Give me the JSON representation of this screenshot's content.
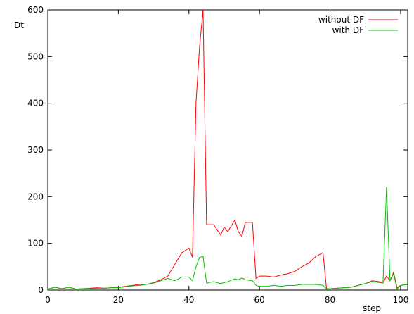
{
  "chart_data": {
    "type": "line",
    "y_label": "Dt",
    "x_label": "step",
    "x": [
      0,
      2,
      4,
      6,
      8,
      10,
      12,
      14,
      16,
      18,
      20,
      22,
      24,
      26,
      28,
      30,
      32,
      34,
      36,
      38,
      40,
      41,
      42,
      43,
      44,
      45,
      47,
      49,
      50,
      51,
      53,
      54,
      55,
      56,
      58,
      59,
      60,
      62,
      64,
      66,
      68,
      70,
      72,
      74,
      76,
      78,
      79,
      80,
      82,
      84,
      86,
      88,
      90,
      92,
      94,
      95,
      96,
      97,
      98,
      99,
      100,
      102
    ],
    "series": [
      {
        "name": "without DF",
        "color": "#ff0000",
        "values": [
          2,
          6,
          3,
          6,
          2,
          3,
          4,
          5,
          4,
          5,
          6,
          8,
          10,
          12,
          12,
          16,
          22,
          30,
          55,
          80,
          90,
          70,
          400,
          520,
          600,
          140,
          140,
          118,
          135,
          125,
          150,
          125,
          115,
          145,
          145,
          25,
          30,
          30,
          28,
          32,
          35,
          40,
          50,
          58,
          72,
          80,
          3,
          3,
          4,
          5,
          6,
          10,
          14,
          20,
          18,
          15,
          30,
          20,
          38,
          5,
          10,
          12
        ]
      },
      {
        "name": "with DF",
        "color": "#00c000",
        "values": [
          2,
          6,
          3,
          6,
          2,
          3,
          3,
          4,
          4,
          5,
          5,
          7,
          9,
          10,
          12,
          15,
          20,
          25,
          20,
          28,
          28,
          20,
          50,
          70,
          72,
          15,
          18,
          14,
          16,
          18,
          24,
          22,
          26,
          22,
          20,
          10,
          8,
          8,
          10,
          8,
          10,
          10,
          12,
          12,
          12,
          10,
          2,
          3,
          4,
          5,
          6,
          10,
          14,
          18,
          16,
          15,
          220,
          20,
          35,
          2,
          10,
          12
        ]
      }
    ],
    "xlim": [
      0,
      102
    ],
    "ylim": [
      0,
      600
    ],
    "xticks": [
      0,
      20,
      40,
      60,
      80,
      100
    ],
    "yticks": [
      0,
      100,
      200,
      300,
      400,
      500,
      600
    ],
    "legend": "top-right"
  }
}
